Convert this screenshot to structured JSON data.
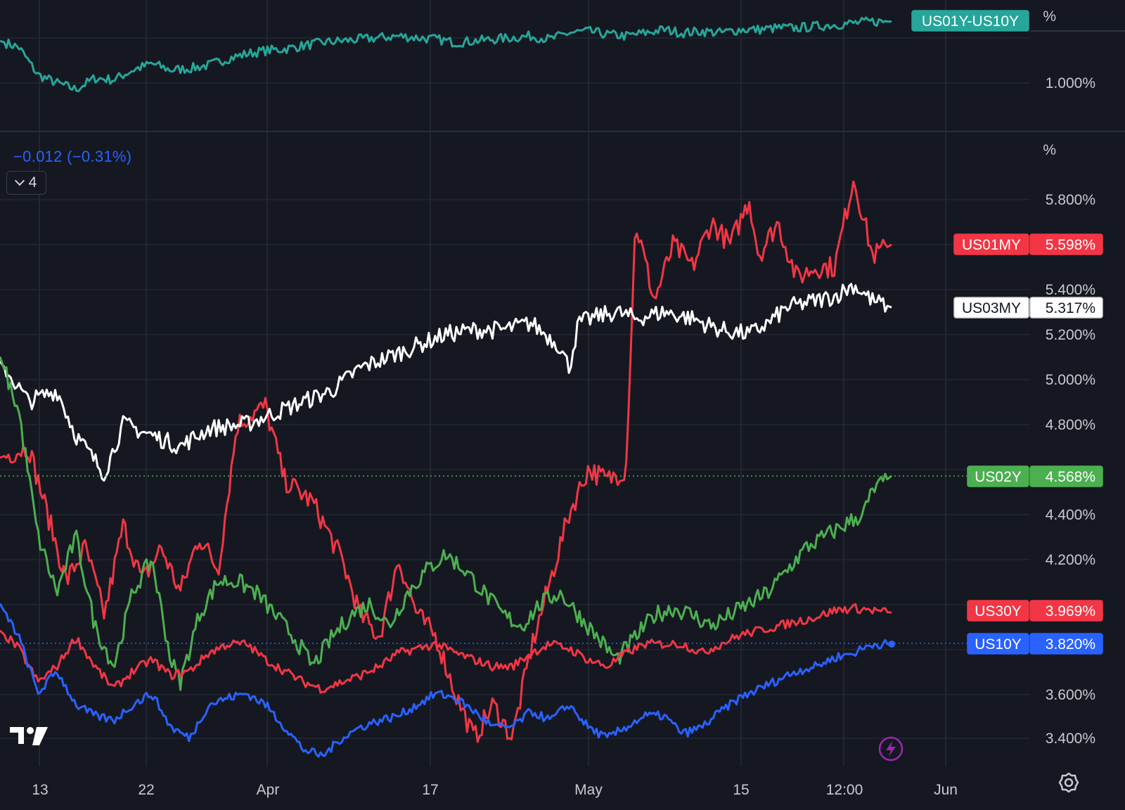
{
  "chart_data": [
    {
      "type": "line",
      "pane": "spread",
      "series": [
        {
          "name": "US01Y-US10Y",
          "color": "#26a69a",
          "last": ""
        }
      ],
      "unit_label": "%",
      "y_ticks": [
        "1.000%"
      ],
      "ylim": [
        0.8,
        1.4
      ]
    },
    {
      "type": "line",
      "pane": "yields",
      "unit_label": "%",
      "change_readout": "−0.012 (−0.31%)",
      "collapsed_count": "4",
      "ylim": [
        3.3,
        6.1
      ],
      "y_ticks": [
        "5.800%",
        "5.400%",
        "5.200%",
        "5.000%",
        "4.800%",
        "4.400%",
        "4.200%",
        "3.600%",
        "3.400%"
      ],
      "y_tick_values": [
        5.8,
        5.4,
        5.2,
        5.0,
        4.8,
        4.4,
        4.2,
        3.6,
        3.4
      ],
      "x_ticks": [
        "13",
        "22",
        "Apr",
        "17",
        "May",
        "15",
        "12:00",
        "Jun"
      ],
      "series": [
        {
          "name": "US01MY",
          "color": "#f23645",
          "last": "5.598%",
          "anchors": [
            [
              0,
              4.65
            ],
            [
              3,
              4.7
            ],
            [
              5,
              4.4
            ],
            [
              7,
              4.1
            ],
            [
              9,
              4.25
            ],
            [
              11,
              3.95
            ],
            [
              13,
              4.35
            ],
            [
              15,
              4.1
            ],
            [
              17,
              4.25
            ],
            [
              19,
              4.05
            ],
            [
              21,
              4.3
            ],
            [
              23,
              4.15
            ],
            [
              25,
              4.8
            ],
            [
              28,
              4.88
            ],
            [
              30,
              4.55
            ],
            [
              33,
              4.45
            ],
            [
              36,
              4.2
            ],
            [
              38,
              3.95
            ],
            [
              40,
              3.85
            ],
            [
              42,
              4.2
            ],
            [
              44,
              3.95
            ],
            [
              46,
              3.85
            ],
            [
              48,
              3.6
            ],
            [
              50,
              3.4
            ],
            [
              52,
              3.55
            ],
            [
              54,
              3.4
            ],
            [
              56,
              3.8
            ],
            [
              58,
              4.1
            ],
            [
              60,
              4.4
            ],
            [
              62,
              4.6
            ],
            [
              64,
              4.55
            ],
            [
              66,
              4.6
            ],
            [
              67,
              5.7
            ],
            [
              69,
              5.35
            ],
            [
              71,
              5.6
            ],
            [
              73,
              5.5
            ],
            [
              75,
              5.7
            ],
            [
              77,
              5.6
            ],
            [
              79,
              5.8
            ],
            [
              80,
              5.55
            ],
            [
              82,
              5.7
            ],
            [
              84,
              5.45
            ],
            [
              86,
              5.5
            ],
            [
              88,
              5.5
            ],
            [
              90,
              5.9
            ],
            [
              92,
              5.55
            ],
            [
              94,
              5.6
            ]
          ],
          "wiggle": 0.05
        },
        {
          "name": "US03MY",
          "color": "#ffffff",
          "last": "5.317%",
          "anchors": [
            [
              0,
              5.08
            ],
            [
              3,
              4.9
            ],
            [
              6,
              4.95
            ],
            [
              8,
              4.75
            ],
            [
              11,
              4.58
            ],
            [
              13,
              4.8
            ],
            [
              16,
              4.75
            ],
            [
              19,
              4.7
            ],
            [
              22,
              4.78
            ],
            [
              26,
              4.8
            ],
            [
              29,
              4.85
            ],
            [
              32,
              4.9
            ],
            [
              35,
              4.95
            ],
            [
              38,
              5.05
            ],
            [
              41,
              5.1
            ],
            [
              44,
              5.15
            ],
            [
              47,
              5.2
            ],
            [
              50,
              5.22
            ],
            [
              53,
              5.22
            ],
            [
              56,
              5.25
            ],
            [
              59,
              5.15
            ],
            [
              60,
              5.05
            ],
            [
              61,
              5.25
            ],
            [
              63,
              5.28
            ],
            [
              65,
              5.3
            ],
            [
              67,
              5.27
            ],
            [
              70,
              5.3
            ],
            [
              73,
              5.27
            ],
            [
              76,
              5.22
            ],
            [
              79,
              5.2
            ],
            [
              81,
              5.25
            ],
            [
              83,
              5.32
            ],
            [
              86,
              5.35
            ],
            [
              88,
              5.37
            ],
            [
              90,
              5.42
            ],
            [
              92,
              5.35
            ],
            [
              94,
              5.32
            ]
          ],
          "wiggle": 0.04
        },
        {
          "name": "US02Y",
          "color": "#4caf50",
          "last": "4.568%",
          "anchors": [
            [
              0,
              5.1
            ],
            [
              2,
              4.85
            ],
            [
              4,
              4.3
            ],
            [
              6,
              4.05
            ],
            [
              8,
              4.3
            ],
            [
              10,
              3.9
            ],
            [
              12,
              3.72
            ],
            [
              14,
              4.05
            ],
            [
              16,
              4.2
            ],
            [
              18,
              3.75
            ],
            [
              19,
              3.65
            ],
            [
              21,
              3.95
            ],
            [
              23,
              4.1
            ],
            [
              25,
              4.1
            ],
            [
              27,
              4.05
            ],
            [
              29,
              3.95
            ],
            [
              31,
              3.85
            ],
            [
              33,
              3.72
            ],
            [
              35,
              3.85
            ],
            [
              37,
              3.95
            ],
            [
              39,
              4.0
            ],
            [
              41,
              3.9
            ],
            [
              43,
              4.05
            ],
            [
              45,
              4.15
            ],
            [
              47,
              4.22
            ],
            [
              49,
              4.15
            ],
            [
              51,
              4.05
            ],
            [
              53,
              3.95
            ],
            [
              55,
              3.9
            ],
            [
              57,
              4.0
            ],
            [
              59,
              4.05
            ],
            [
              61,
              3.95
            ],
            [
              63,
              3.85
            ],
            [
              65,
              3.75
            ],
            [
              67,
              3.85
            ],
            [
              69,
              3.95
            ],
            [
              71,
              3.98
            ],
            [
              73,
              3.95
            ],
            [
              75,
              3.9
            ],
            [
              77,
              3.95
            ],
            [
              79,
              4.0
            ],
            [
              81,
              4.05
            ],
            [
              83,
              4.15
            ],
            [
              85,
              4.25
            ],
            [
              87,
              4.3
            ],
            [
              89,
              4.35
            ],
            [
              91,
              4.4
            ],
            [
              92,
              4.5
            ],
            [
              94,
              4.57
            ]
          ],
          "wiggle": 0.04
        },
        {
          "name": "US30Y",
          "color": "#f23645",
          "last": "3.969%",
          "anchors": [
            [
              0,
              3.88
            ],
            [
              2,
              3.8
            ],
            [
              4,
              3.65
            ],
            [
              6,
              3.72
            ],
            [
              8,
              3.85
            ],
            [
              10,
              3.72
            ],
            [
              12,
              3.62
            ],
            [
              14,
              3.7
            ],
            [
              16,
              3.75
            ],
            [
              18,
              3.68
            ],
            [
              20,
              3.7
            ],
            [
              22,
              3.78
            ],
            [
              24,
              3.82
            ],
            [
              26,
              3.82
            ],
            [
              28,
              3.75
            ],
            [
              30,
              3.7
            ],
            [
              32,
              3.65
            ],
            [
              34,
              3.62
            ],
            [
              36,
              3.65
            ],
            [
              38,
              3.68
            ],
            [
              40,
              3.72
            ],
            [
              42,
              3.78
            ],
            [
              44,
              3.8
            ],
            [
              46,
              3.82
            ],
            [
              48,
              3.78
            ],
            [
              50,
              3.75
            ],
            [
              52,
              3.72
            ],
            [
              54,
              3.72
            ],
            [
              56,
              3.78
            ],
            [
              58,
              3.82
            ],
            [
              60,
              3.8
            ],
            [
              62,
              3.75
            ],
            [
              64,
              3.72
            ],
            [
              66,
              3.78
            ],
            [
              68,
              3.82
            ],
            [
              70,
              3.82
            ],
            [
              72,
              3.82
            ],
            [
              74,
              3.78
            ],
            [
              76,
              3.82
            ],
            [
              78,
              3.86
            ],
            [
              80,
              3.88
            ],
            [
              82,
              3.9
            ],
            [
              84,
              3.92
            ],
            [
              86,
              3.94
            ],
            [
              88,
              3.97
            ],
            [
              90,
              3.98
            ],
            [
              92,
              3.97
            ],
            [
              94,
              3.96
            ]
          ],
          "wiggle": 0.02
        },
        {
          "name": "US10Y",
          "color": "#2962ff",
          "last": "3.820%",
          "anchors": [
            [
              0,
              4.0
            ],
            [
              2,
              3.85
            ],
            [
              4,
              3.6
            ],
            [
              6,
              3.7
            ],
            [
              8,
              3.55
            ],
            [
              10,
              3.5
            ],
            [
              12,
              3.48
            ],
            [
              14,
              3.55
            ],
            [
              16,
              3.6
            ],
            [
              18,
              3.45
            ],
            [
              20,
              3.4
            ],
            [
              22,
              3.55
            ],
            [
              24,
              3.58
            ],
            [
              26,
              3.6
            ],
            [
              28,
              3.55
            ],
            [
              30,
              3.45
            ],
            [
              32,
              3.35
            ],
            [
              34,
              3.32
            ],
            [
              36,
              3.4
            ],
            [
              38,
              3.45
            ],
            [
              40,
              3.48
            ],
            [
              42,
              3.5
            ],
            [
              44,
              3.55
            ],
            [
              46,
              3.6
            ],
            [
              48,
              3.58
            ],
            [
              50,
              3.52
            ],
            [
              52,
              3.45
            ],
            [
              54,
              3.45
            ],
            [
              56,
              3.52
            ],
            [
              58,
              3.48
            ],
            [
              60,
              3.55
            ],
            [
              62,
              3.45
            ],
            [
              64,
              3.4
            ],
            [
              66,
              3.45
            ],
            [
              68,
              3.5
            ],
            [
              70,
              3.5
            ],
            [
              72,
              3.42
            ],
            [
              74,
              3.45
            ],
            [
              76,
              3.52
            ],
            [
              78,
              3.58
            ],
            [
              80,
              3.62
            ],
            [
              82,
              3.66
            ],
            [
              84,
              3.7
            ],
            [
              86,
              3.72
            ],
            [
              88,
              3.76
            ],
            [
              90,
              3.78
            ],
            [
              92,
              3.82
            ],
            [
              94,
              3.82
            ]
          ],
          "wiggle": 0.02
        }
      ]
    }
  ],
  "spread_anchors": [
    [
      0,
      1.26
    ],
    [
      2,
      1.22
    ],
    [
      4,
      1.05
    ],
    [
      6,
      1.0
    ],
    [
      8,
      0.96
    ],
    [
      10,
      1.03
    ],
    [
      12,
      1.02
    ],
    [
      14,
      1.08
    ],
    [
      16,
      1.12
    ],
    [
      18,
      1.08
    ],
    [
      20,
      1.09
    ],
    [
      22,
      1.11
    ],
    [
      24,
      1.15
    ],
    [
      26,
      1.18
    ],
    [
      28,
      1.2
    ],
    [
      30,
      1.21
    ],
    [
      32,
      1.23
    ],
    [
      34,
      1.25
    ],
    [
      36,
      1.26
    ],
    [
      38,
      1.27
    ],
    [
      40,
      1.28
    ],
    [
      42,
      1.29
    ],
    [
      44,
      1.28
    ],
    [
      46,
      1.27
    ],
    [
      48,
      1.25
    ],
    [
      50,
      1.26
    ],
    [
      52,
      1.27
    ],
    [
      54,
      1.28
    ],
    [
      56,
      1.29
    ],
    [
      58,
      1.27
    ],
    [
      60,
      1.31
    ],
    [
      62,
      1.32
    ],
    [
      64,
      1.3
    ],
    [
      66,
      1.29
    ],
    [
      68,
      1.31
    ],
    [
      70,
      1.33
    ],
    [
      72,
      1.31
    ],
    [
      74,
      1.32
    ],
    [
      76,
      1.31
    ],
    [
      78,
      1.33
    ],
    [
      80,
      1.33
    ],
    [
      82,
      1.34
    ],
    [
      84,
      1.34
    ],
    [
      86,
      1.35
    ],
    [
      88,
      1.36
    ],
    [
      90,
      1.37
    ],
    [
      92,
      1.38
    ],
    [
      94,
      1.38
    ]
  ],
  "spread_color": "#26a69a"
}
